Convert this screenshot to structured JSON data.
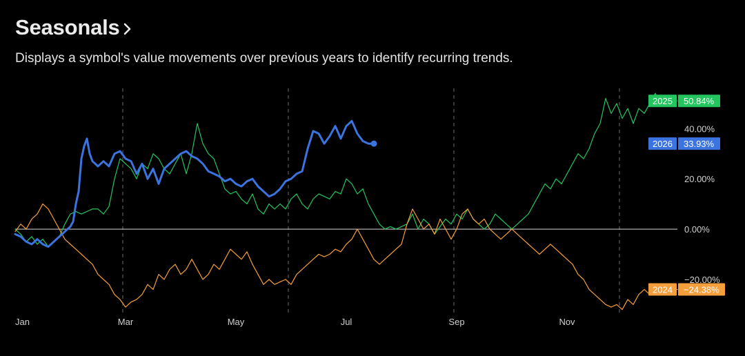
{
  "header": {
    "title": "Seasonals",
    "subtitle": "Displays a symbol's value movements over previous years to identify recurring trends."
  },
  "chart_data": {
    "type": "line",
    "x_unit": "month of year",
    "xlim": [
      0,
      12
    ],
    "ylim": [
      -34,
      56
    ],
    "x_ticks": [
      {
        "value": 0,
        "label": "Jan"
      },
      {
        "value": 2,
        "label": "Mar"
      },
      {
        "value": 4,
        "label": "May"
      },
      {
        "value": 6,
        "label": "Jul"
      },
      {
        "value": 8,
        "label": "Sep"
      },
      {
        "value": 10,
        "label": "Nov"
      }
    ],
    "y_ticks": [
      {
        "value": 40,
        "label": "40.00%"
      },
      {
        "value": 20,
        "label": "20.00%"
      },
      {
        "value": 0,
        "label": "0.00%"
      },
      {
        "value": -20,
        "label": "−20.00%"
      }
    ],
    "zero_line": 0,
    "vertical_dashed_lines": [
      1.95,
      4.95,
      7.95,
      10.95
    ],
    "series": [
      {
        "name": "2025",
        "label": "50.84%",
        "color": "#22c55e",
        "stroke_width": 1.2,
        "values": [
          [
            0,
            0
          ],
          [
            0.1,
            -2
          ],
          [
            0.2,
            -5
          ],
          [
            0.3,
            -3
          ],
          [
            0.4,
            -6
          ],
          [
            0.5,
            -4
          ],
          [
            0.6,
            -7
          ],
          [
            0.7,
            -5
          ],
          [
            0.8,
            -3
          ],
          [
            0.9,
            2
          ],
          [
            1.0,
            6
          ],
          [
            1.1,
            7
          ],
          [
            1.2,
            6
          ],
          [
            1.3,
            7
          ],
          [
            1.4,
            8
          ],
          [
            1.5,
            8
          ],
          [
            1.6,
            6
          ],
          [
            1.7,
            9
          ],
          [
            1.8,
            20
          ],
          [
            1.9,
            28
          ],
          [
            2.0,
            26
          ],
          [
            2.1,
            24
          ],
          [
            2.2,
            20
          ],
          [
            2.3,
            26
          ],
          [
            2.4,
            24
          ],
          [
            2.5,
            30
          ],
          [
            2.6,
            28
          ],
          [
            2.7,
            24
          ],
          [
            2.8,
            22
          ],
          [
            2.9,
            26
          ],
          [
            3.0,
            30
          ],
          [
            3.1,
            22
          ],
          [
            3.2,
            30
          ],
          [
            3.3,
            42
          ],
          [
            3.4,
            34
          ],
          [
            3.5,
            30
          ],
          [
            3.6,
            28
          ],
          [
            3.7,
            22
          ],
          [
            3.8,
            16
          ],
          [
            3.9,
            14
          ],
          [
            4.0,
            15
          ],
          [
            4.1,
            12
          ],
          [
            4.2,
            10
          ],
          [
            4.3,
            14
          ],
          [
            4.4,
            8
          ],
          [
            4.5,
            6
          ],
          [
            4.6,
            10
          ],
          [
            4.7,
            8
          ],
          [
            4.8,
            10
          ],
          [
            4.9,
            8
          ],
          [
            5.0,
            12
          ],
          [
            5.1,
            14
          ],
          [
            5.2,
            10
          ],
          [
            5.3,
            8
          ],
          [
            5.4,
            12
          ],
          [
            5.5,
            14
          ],
          [
            5.6,
            13
          ],
          [
            5.7,
            12
          ],
          [
            5.8,
            15
          ],
          [
            5.9,
            14
          ],
          [
            6.0,
            20
          ],
          [
            6.1,
            18
          ],
          [
            6.2,
            14
          ],
          [
            6.3,
            16
          ],
          [
            6.4,
            10
          ],
          [
            6.5,
            6
          ],
          [
            6.6,
            2
          ],
          [
            6.7,
            0
          ],
          [
            6.8,
            1
          ],
          [
            6.9,
            0
          ],
          [
            7.0,
            1
          ],
          [
            7.1,
            2
          ],
          [
            7.2,
            6
          ],
          [
            7.3,
            0
          ],
          [
            7.4,
            4
          ],
          [
            7.5,
            2
          ],
          [
            7.6,
            -2
          ],
          [
            7.7,
            1
          ],
          [
            7.8,
            4
          ],
          [
            7.9,
            2
          ],
          [
            8.0,
            6
          ],
          [
            8.1,
            4
          ],
          [
            8.2,
            8
          ],
          [
            8.3,
            4
          ],
          [
            8.4,
            2
          ],
          [
            8.5,
            0
          ],
          [
            8.6,
            2
          ],
          [
            8.7,
            6
          ],
          [
            8.8,
            4
          ],
          [
            8.9,
            2
          ],
          [
            9.0,
            0
          ],
          [
            9.1,
            2
          ],
          [
            9.2,
            4
          ],
          [
            9.3,
            6
          ],
          [
            9.4,
            10
          ],
          [
            9.5,
            14
          ],
          [
            9.6,
            18
          ],
          [
            9.7,
            16
          ],
          [
            9.8,
            20
          ],
          [
            9.9,
            18
          ],
          [
            10.0,
            22
          ],
          [
            10.1,
            26
          ],
          [
            10.2,
            30
          ],
          [
            10.3,
            28
          ],
          [
            10.4,
            32
          ],
          [
            10.5,
            38
          ],
          [
            10.6,
            42
          ],
          [
            10.7,
            52
          ],
          [
            10.8,
            46
          ],
          [
            10.9,
            50
          ],
          [
            11.0,
            44
          ],
          [
            11.1,
            48
          ],
          [
            11.2,
            42
          ],
          [
            11.3,
            48
          ],
          [
            11.4,
            46
          ],
          [
            11.5,
            50
          ],
          [
            11.6,
            54
          ],
          [
            11.7,
            50
          ],
          [
            11.8,
            52
          ],
          [
            11.9,
            51
          ],
          [
            12.0,
            51
          ]
        ]
      },
      {
        "name": "2024",
        "label": "−24.38%",
        "color": "#f59e3c",
        "stroke_width": 1.2,
        "values": [
          [
            0,
            -1
          ],
          [
            0.1,
            2
          ],
          [
            0.2,
            0
          ],
          [
            0.3,
            4
          ],
          [
            0.4,
            6
          ],
          [
            0.5,
            10
          ],
          [
            0.6,
            8
          ],
          [
            0.7,
            4
          ],
          [
            0.8,
            0
          ],
          [
            0.9,
            -4
          ],
          [
            1.0,
            -6
          ],
          [
            1.1,
            -8
          ],
          [
            1.2,
            -10
          ],
          [
            1.3,
            -12
          ],
          [
            1.4,
            -14
          ],
          [
            1.5,
            -18
          ],
          [
            1.6,
            -20
          ],
          [
            1.7,
            -22
          ],
          [
            1.8,
            -26
          ],
          [
            1.9,
            -28
          ],
          [
            2.0,
            -31
          ],
          [
            2.1,
            -29
          ],
          [
            2.2,
            -28
          ],
          [
            2.3,
            -26
          ],
          [
            2.4,
            -22
          ],
          [
            2.5,
            -24
          ],
          [
            2.6,
            -18
          ],
          [
            2.7,
            -20
          ],
          [
            2.8,
            -16
          ],
          [
            2.9,
            -14
          ],
          [
            3.0,
            -18
          ],
          [
            3.1,
            -16
          ],
          [
            3.2,
            -12
          ],
          [
            3.3,
            -16
          ],
          [
            3.4,
            -20
          ],
          [
            3.5,
            -18
          ],
          [
            3.6,
            -14
          ],
          [
            3.7,
            -16
          ],
          [
            3.8,
            -12
          ],
          [
            3.9,
            -8
          ],
          [
            4.0,
            -10
          ],
          [
            4.1,
            -12
          ],
          [
            4.2,
            -9
          ],
          [
            4.3,
            -14
          ],
          [
            4.4,
            -18
          ],
          [
            4.5,
            -22
          ],
          [
            4.6,
            -20
          ],
          [
            4.7,
            -22
          ],
          [
            4.8,
            -21
          ],
          [
            4.9,
            -20
          ],
          [
            5.0,
            -22
          ],
          [
            5.1,
            -18
          ],
          [
            5.2,
            -16
          ],
          [
            5.3,
            -14
          ],
          [
            5.4,
            -12
          ],
          [
            5.5,
            -10
          ],
          [
            5.6,
            -11
          ],
          [
            5.7,
            -10
          ],
          [
            5.8,
            -8
          ],
          [
            5.9,
            -9
          ],
          [
            6.0,
            -6
          ],
          [
            6.1,
            -4
          ],
          [
            6.2,
            0
          ],
          [
            6.3,
            -4
          ],
          [
            6.4,
            -8
          ],
          [
            6.5,
            -12
          ],
          [
            6.6,
            -14
          ],
          [
            6.7,
            -12
          ],
          [
            6.8,
            -10
          ],
          [
            6.9,
            -8
          ],
          [
            7.0,
            -6
          ],
          [
            7.1,
            2
          ],
          [
            7.2,
            8
          ],
          [
            7.3,
            4
          ],
          [
            7.4,
            0
          ],
          [
            7.5,
            2
          ],
          [
            7.6,
            -2
          ],
          [
            7.7,
            4
          ],
          [
            7.8,
            0
          ],
          [
            7.9,
            -4
          ],
          [
            8.0,
            0
          ],
          [
            8.1,
            6
          ],
          [
            8.2,
            8
          ],
          [
            8.3,
            4
          ],
          [
            8.4,
            2
          ],
          [
            8.5,
            4
          ],
          [
            8.6,
            0
          ],
          [
            8.7,
            -2
          ],
          [
            8.8,
            -4
          ],
          [
            8.9,
            -2
          ],
          [
            9.0,
            0
          ],
          [
            9.1,
            -2
          ],
          [
            9.2,
            -4
          ],
          [
            9.3,
            -6
          ],
          [
            9.4,
            -8
          ],
          [
            9.5,
            -10
          ],
          [
            9.6,
            -8
          ],
          [
            9.7,
            -6
          ],
          [
            9.8,
            -8
          ],
          [
            9.9,
            -10
          ],
          [
            10.0,
            -12
          ],
          [
            10.1,
            -14
          ],
          [
            10.2,
            -18
          ],
          [
            10.3,
            -20
          ],
          [
            10.4,
            -24
          ],
          [
            10.5,
            -26
          ],
          [
            10.6,
            -28
          ],
          [
            10.7,
            -30
          ],
          [
            10.8,
            -31
          ],
          [
            10.9,
            -30
          ],
          [
            11.0,
            -32
          ],
          [
            11.1,
            -28
          ],
          [
            11.2,
            -30
          ],
          [
            11.3,
            -26
          ],
          [
            11.4,
            -24
          ],
          [
            11.5,
            -26
          ],
          [
            11.6,
            -24
          ],
          [
            11.7,
            -22
          ],
          [
            11.8,
            -24
          ],
          [
            11.9,
            -24
          ],
          [
            12.0,
            -24
          ]
        ]
      },
      {
        "name": "2026",
        "label": "33.93%",
        "color": "#3b73e0",
        "stroke_width": 3,
        "end_marker": true,
        "values": [
          [
            0,
            -2
          ],
          [
            0.1,
            -3
          ],
          [
            0.2,
            -5
          ],
          [
            0.3,
            -6
          ],
          [
            0.4,
            -4
          ],
          [
            0.5,
            -6
          ],
          [
            0.6,
            -7
          ],
          [
            0.7,
            -5
          ],
          [
            0.8,
            -3
          ],
          [
            0.9,
            -1
          ],
          [
            1.0,
            1
          ],
          [
            1.05,
            3
          ],
          [
            1.1,
            10
          ],
          [
            1.15,
            15
          ],
          [
            1.2,
            28
          ],
          [
            1.25,
            33
          ],
          [
            1.3,
            36
          ],
          [
            1.35,
            30
          ],
          [
            1.4,
            27
          ],
          [
            1.5,
            25
          ],
          [
            1.6,
            27
          ],
          [
            1.7,
            25
          ],
          [
            1.8,
            30
          ],
          [
            1.9,
            31
          ],
          [
            2.0,
            28
          ],
          [
            2.1,
            27
          ],
          [
            2.2,
            22
          ],
          [
            2.3,
            26
          ],
          [
            2.4,
            20
          ],
          [
            2.5,
            24
          ],
          [
            2.6,
            18
          ],
          [
            2.7,
            24
          ],
          [
            2.8,
            26
          ],
          [
            2.9,
            28
          ],
          [
            3.0,
            30
          ],
          [
            3.1,
            31
          ],
          [
            3.2,
            29
          ],
          [
            3.3,
            28
          ],
          [
            3.4,
            26
          ],
          [
            3.5,
            23
          ],
          [
            3.6,
            22
          ],
          [
            3.7,
            21
          ],
          [
            3.8,
            19
          ],
          [
            3.9,
            20
          ],
          [
            4.0,
            18
          ],
          [
            4.1,
            17
          ],
          [
            4.2,
            19
          ],
          [
            4.3,
            20
          ],
          [
            4.4,
            17
          ],
          [
            4.5,
            15
          ],
          [
            4.6,
            13
          ],
          [
            4.7,
            14
          ],
          [
            4.8,
            16
          ],
          [
            4.9,
            19
          ],
          [
            5.0,
            20
          ],
          [
            5.1,
            22
          ],
          [
            5.2,
            23
          ],
          [
            5.3,
            32
          ],
          [
            5.4,
            39
          ],
          [
            5.5,
            38
          ],
          [
            5.6,
            34
          ],
          [
            5.7,
            37
          ],
          [
            5.8,
            41
          ],
          [
            5.9,
            36
          ],
          [
            6.0,
            41
          ],
          [
            6.1,
            43
          ],
          [
            6.2,
            38
          ],
          [
            6.3,
            35
          ],
          [
            6.4,
            34
          ],
          [
            6.5,
            34
          ]
        ]
      }
    ]
  }
}
